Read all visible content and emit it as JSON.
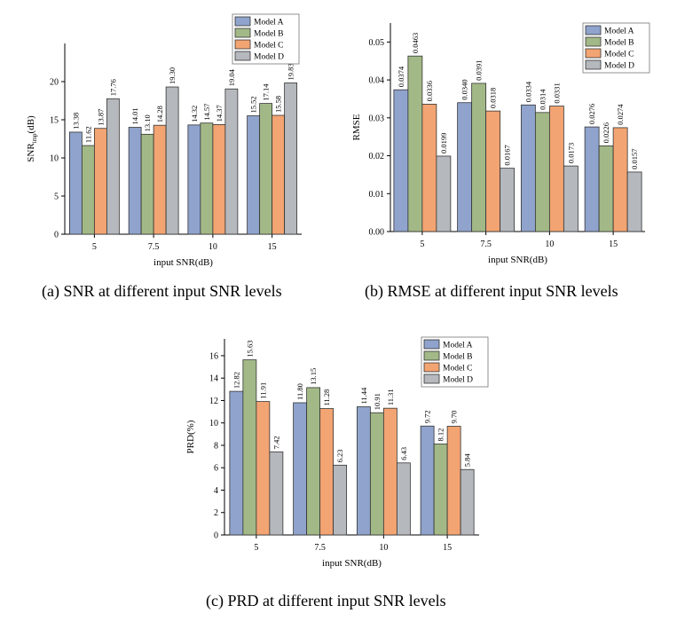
{
  "colors": {
    "Model A": "#8FA3CC",
    "Model B": "#A2B987",
    "Model C": "#F2A472",
    "Model D": "#B5B8BD",
    "edge": "#333333"
  },
  "chart_data": [
    {
      "type": "bar",
      "id": "a",
      "caption": "(a) SNR at different input SNR levels",
      "xlabel": "input SNR(dB)",
      "ylabel_main": "SNR",
      "ylabel_sub": "imp",
      "ylabel_tail": "(dB)",
      "ylim": [
        0,
        25
      ],
      "yticks": [
        0,
        5,
        10,
        15,
        20
      ],
      "ytick_labels": [
        "0",
        "5",
        "10",
        "15",
        "20"
      ],
      "categories": [
        "5",
        "7.5",
        "10",
        "15"
      ],
      "series": [
        {
          "name": "Model A",
          "values": [
            13.38,
            14.01,
            14.32,
            15.52
          ],
          "labels": [
            "13.38",
            "14.01",
            "14.32",
            "15.52"
          ]
        },
        {
          "name": "Model B",
          "values": [
            11.62,
            13.1,
            14.57,
            17.14
          ],
          "labels": [
            "11.62",
            "13.10",
            "14.57",
            "17.14"
          ]
        },
        {
          "name": "Model C",
          "values": [
            13.87,
            14.28,
            14.37,
            15.58
          ],
          "labels": [
            "13.87",
            "14.28",
            "14.37",
            "15.58"
          ]
        },
        {
          "name": "Model D",
          "values": [
            17.76,
            19.3,
            19.04,
            19.83
          ],
          "labels": [
            "17.76",
            "19.30",
            "19.04",
            "19.83"
          ]
        }
      ],
      "legend": "top-right"
    },
    {
      "type": "bar",
      "id": "b",
      "caption": "(b) RMSE at different input SNR levels",
      "xlabel": "input SNR(dB)",
      "ylabel_main": "RMSE",
      "ylabel_sub": "",
      "ylabel_tail": "",
      "ylim": [
        0,
        0.055
      ],
      "yticks": [
        0,
        0.01,
        0.02,
        0.03,
        0.04,
        0.05
      ],
      "ytick_labels": [
        "0.00",
        "0.01",
        "0.02",
        "0.03",
        "0.04",
        "0.05"
      ],
      "categories": [
        "5",
        "7.5",
        "10",
        "15"
      ],
      "series": [
        {
          "name": "Model A",
          "values": [
            0.0374,
            0.034,
            0.0334,
            0.0276
          ],
          "labels": [
            "0.0374",
            "0.0340",
            "0.0334",
            "0.0276"
          ]
        },
        {
          "name": "Model B",
          "values": [
            0.0463,
            0.0391,
            0.0314,
            0.0226
          ],
          "labels": [
            "0.0463",
            "0.0391",
            "0.0314",
            "0.0226"
          ]
        },
        {
          "name": "Model C",
          "values": [
            0.0336,
            0.0318,
            0.0331,
            0.0274
          ],
          "labels": [
            "0.0336",
            "0.0318",
            "0.0331",
            "0.0274"
          ]
        },
        {
          "name": "Model D",
          "values": [
            0.0199,
            0.0167,
            0.0173,
            0.0157
          ],
          "labels": [
            "0.0199",
            "0.0167",
            "0.0173",
            "0.0157"
          ]
        }
      ],
      "legend": "top-right"
    },
    {
      "type": "bar",
      "id": "c",
      "caption": "(c) PRD at different input SNR levels",
      "xlabel": "input SNR(dB)",
      "ylabel_main": "PRD(%)",
      "ylabel_sub": "",
      "ylabel_tail": "",
      "ylim": [
        0,
        17.5
      ],
      "yticks": [
        0,
        2,
        4,
        6,
        8,
        10,
        12,
        14,
        16
      ],
      "ytick_labels": [
        "0",
        "2",
        "4",
        "6",
        "8",
        "10",
        "12",
        "14",
        "16"
      ],
      "categories": [
        "5",
        "7.5",
        "10",
        "15"
      ],
      "series": [
        {
          "name": "Model A",
          "values": [
            12.82,
            11.8,
            11.44,
            9.72
          ],
          "labels": [
            "12.82",
            "11.80",
            "11.44",
            "9.72"
          ]
        },
        {
          "name": "Model B",
          "values": [
            15.63,
            13.15,
            10.91,
            8.12
          ],
          "labels": [
            "15.63",
            "13.15",
            "10.91",
            "8.12"
          ]
        },
        {
          "name": "Model C",
          "values": [
            11.91,
            11.28,
            11.31,
            9.7
          ],
          "labels": [
            "11.91",
            "11.28",
            "11.31",
            "9.70"
          ]
        },
        {
          "name": "Model D",
          "values": [
            7.42,
            6.23,
            6.43,
            5.84
          ],
          "labels": [
            "7.42",
            "6.23",
            "6.43",
            "5.84"
          ]
        }
      ],
      "legend": "top-right"
    }
  ]
}
